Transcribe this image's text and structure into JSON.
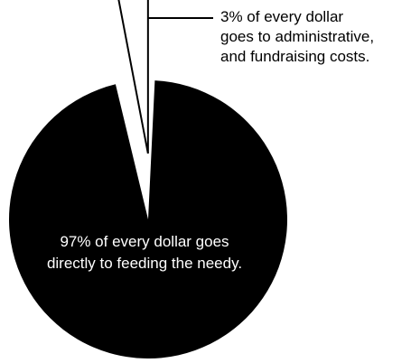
{
  "chart_data": {
    "type": "pie",
    "title": "",
    "slices": [
      {
        "value": 97,
        "label": "97% of every dollar goes\ndirectly to feeding the needy.",
        "color": "#000000"
      },
      {
        "value": 3,
        "label": "3% of every dollar\ngoes to administrative,\nand fundraising costs.",
        "color": "#000000",
        "exploded": true
      }
    ],
    "legend": "none"
  }
}
